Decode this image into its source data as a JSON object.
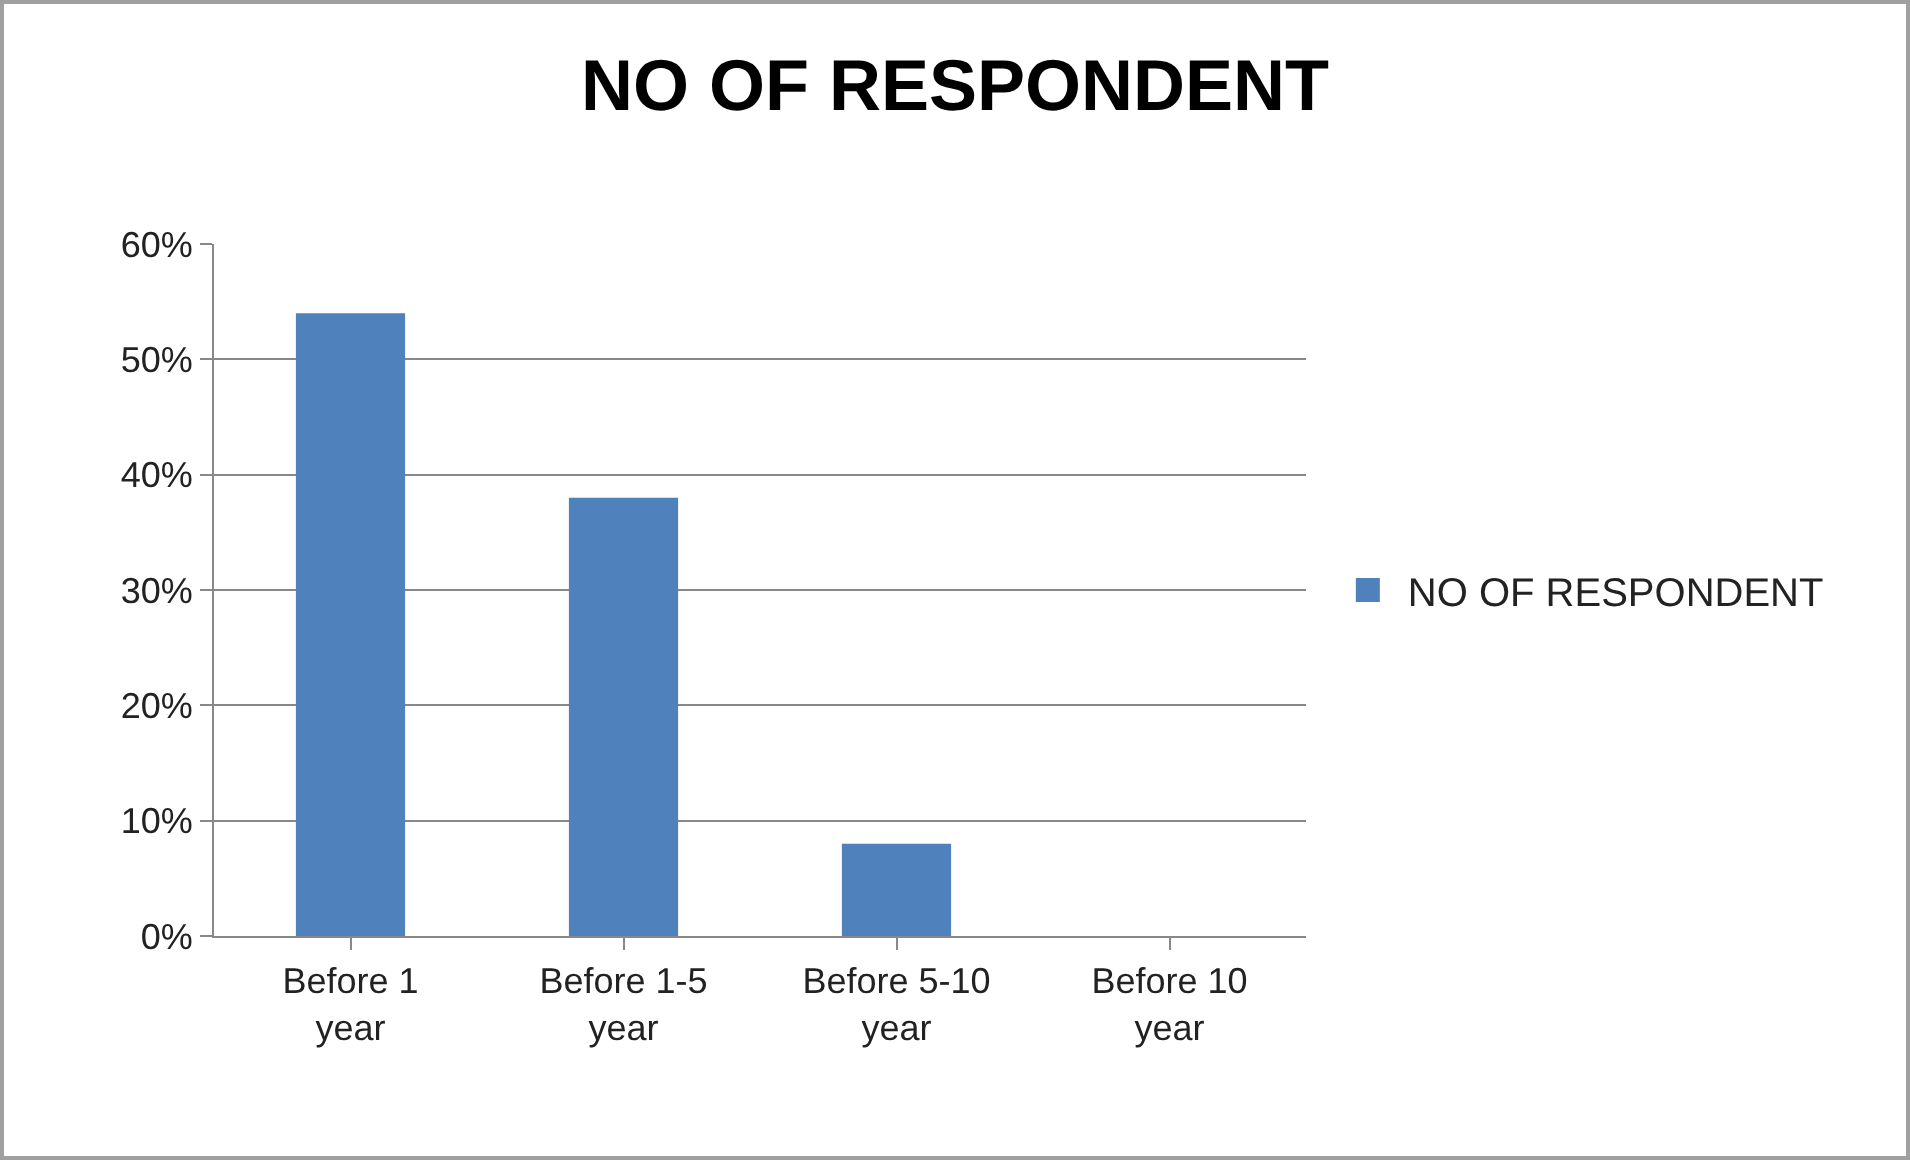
{
  "chart_data": {
    "type": "bar",
    "title": "NO OF RESPONDENT",
    "categories": [
      "Before 1 year",
      "Before 1-5 year",
      "Before 5-10 year",
      "Before 10 year"
    ],
    "series": [
      {
        "name": "NO OF RESPONDENT",
        "color": "#4f81bd",
        "values": [
          54,
          38,
          8,
          0
        ]
      }
    ],
    "ylim": [
      0,
      60
    ],
    "yticks": [
      {
        "value": 0,
        "label": "0%"
      },
      {
        "value": 10,
        "label": "10%"
      },
      {
        "value": 20,
        "label": "20%"
      },
      {
        "value": 30,
        "label": "30%"
      },
      {
        "value": 40,
        "label": "40%"
      },
      {
        "value": 50,
        "label": "50%"
      },
      {
        "value": 60,
        "label": "60%"
      }
    ],
    "grid": "y",
    "legend": "right"
  }
}
